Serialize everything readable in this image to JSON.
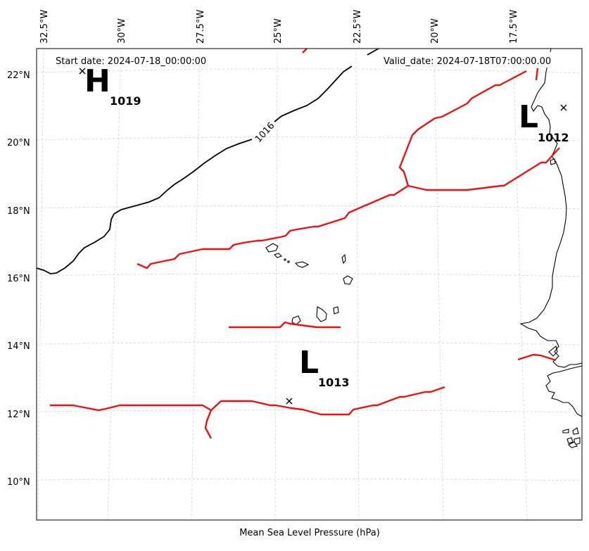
{
  "map": {
    "header_left": "Start date: 2024-07-18_00:00:00",
    "header_right": "Valid_date: 2024-07-18T07:00:00.00",
    "xlabel": "Mean Sea Level Pressure (hPa)",
    "lon_ticks": [
      "32.5°W",
      "30°W",
      "27.5°W",
      "25°W",
      "22.5°W",
      "20°W",
      "17.5°W"
    ],
    "lat_ticks": [
      "22°N",
      "20°N",
      "18°N",
      "16°N",
      "14°N",
      "12°N",
      "10°N"
    ],
    "isobar_label": "1016",
    "centers": [
      {
        "letter": "H",
        "value": "1019"
      },
      {
        "letter": "L",
        "value": "1012"
      },
      {
        "letter": "L",
        "value": "1013"
      }
    ],
    "colors": {
      "isobar": "#000000",
      "trough": "#ee1111",
      "coast": "#000000",
      "grid": "#cfcfcf"
    }
  }
}
